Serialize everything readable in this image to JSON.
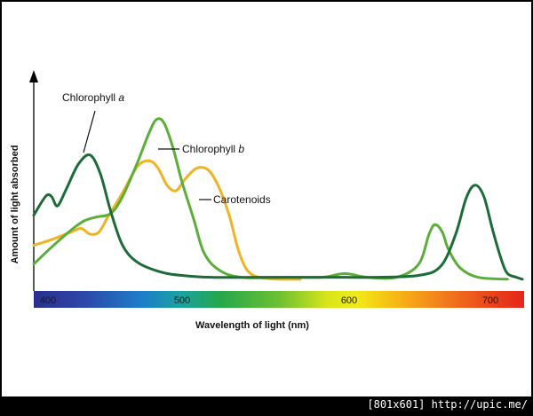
{
  "chart_data": {
    "type": "line",
    "xlabel": "Wavelength of light (nm)",
    "ylabel": "Amount of light absorbed",
    "xlim": [
      380,
      710
    ],
    "ylim": [
      0,
      100
    ],
    "x_ticks": [
      400,
      500,
      600,
      700
    ],
    "grid": false,
    "legend": "inline labels",
    "series": [
      {
        "name": "Chlorophyll a",
        "name_parts": [
          "Chlorophyll ",
          "a"
        ],
        "color": "#1e6b3a",
        "points": [
          [
            380,
            36
          ],
          [
            388,
            46
          ],
          [
            392,
            46
          ],
          [
            396,
            41
          ],
          [
            402,
            50
          ],
          [
            410,
            63
          ],
          [
            418,
            68
          ],
          [
            425,
            58
          ],
          [
            432,
            38
          ],
          [
            440,
            20
          ],
          [
            450,
            11
          ],
          [
            465,
            6
          ],
          [
            480,
            4
          ],
          [
            500,
            3
          ],
          [
            530,
            3
          ],
          [
            560,
            3
          ],
          [
            590,
            3
          ],
          [
            610,
            3
          ],
          [
            640,
            4
          ],
          [
            655,
            9
          ],
          [
            665,
            26
          ],
          [
            672,
            45
          ],
          [
            678,
            52
          ],
          [
            684,
            46
          ],
          [
            690,
            28
          ],
          [
            696,
            12
          ],
          [
            700,
            5
          ],
          [
            706,
            3
          ],
          [
            710,
            2
          ]
        ]
      },
      {
        "name": "Chlorophyll b",
        "name_parts": [
          "Chlorophyll ",
          "b"
        ],
        "color": "#5cae3a",
        "points": [
          [
            380,
            10
          ],
          [
            392,
            19
          ],
          [
            405,
            28
          ],
          [
            414,
            33
          ],
          [
            422,
            35
          ],
          [
            432,
            37
          ],
          [
            440,
            46
          ],
          [
            450,
            64
          ],
          [
            458,
            80
          ],
          [
            463,
            87
          ],
          [
            468,
            85
          ],
          [
            474,
            72
          ],
          [
            480,
            54
          ],
          [
            488,
            34
          ],
          [
            495,
            16
          ],
          [
            505,
            7
          ],
          [
            520,
            3
          ],
          [
            550,
            3
          ],
          [
            575,
            3
          ],
          [
            590,
            5
          ],
          [
            605,
            3
          ],
          [
            625,
            3
          ],
          [
            640,
            10
          ],
          [
            647,
            26
          ],
          [
            651,
            31
          ],
          [
            656,
            27
          ],
          [
            660,
            18
          ],
          [
            668,
            8
          ],
          [
            680,
            3
          ],
          [
            700,
            2
          ]
        ]
      },
      {
        "name": "Carotenoids",
        "name_parts": [
          "Carotenoids"
        ],
        "color": "#f0b323",
        "points": [
          [
            380,
            20
          ],
          [
            392,
            23
          ],
          [
            405,
            27
          ],
          [
            412,
            29
          ],
          [
            418,
            26
          ],
          [
            424,
            27
          ],
          [
            430,
            35
          ],
          [
            440,
            48
          ],
          [
            450,
            62
          ],
          [
            458,
            65
          ],
          [
            464,
            61
          ],
          [
            470,
            52
          ],
          [
            476,
            49
          ],
          [
            482,
            55
          ],
          [
            490,
            61
          ],
          [
            498,
            60
          ],
          [
            505,
            51
          ],
          [
            512,
            36
          ],
          [
            518,
            18
          ],
          [
            524,
            7
          ],
          [
            532,
            3
          ],
          [
            545,
            2
          ],
          [
            560,
            2
          ]
        ]
      }
    ]
  },
  "watermark": "[801x601] http://upic.me/"
}
